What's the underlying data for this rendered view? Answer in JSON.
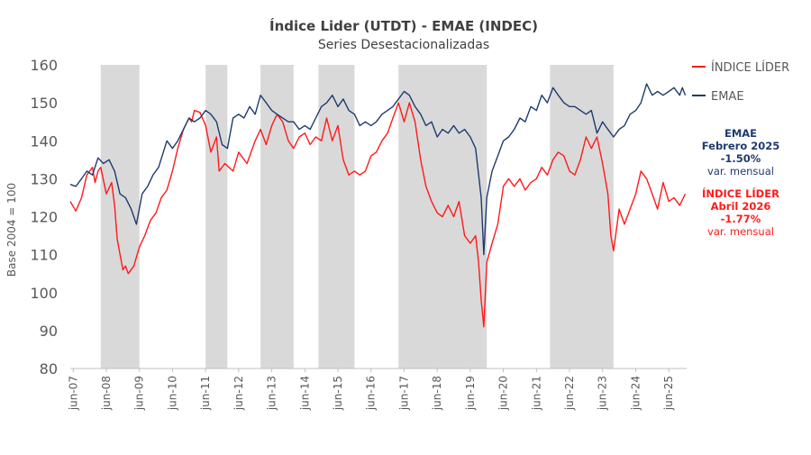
{
  "chart_data": {
    "type": "line",
    "title": "Índice Lider (UTDT)  - EMAE (INDEC)",
    "subtitle": "Series Desestacionalizadas",
    "ylabel": "Base 2004 = 100",
    "ylim": [
      80,
      160
    ],
    "yticks": [
      80,
      90,
      100,
      110,
      120,
      130,
      140,
      150,
      160
    ],
    "xlim": [
      2007.33,
      2025.96
    ],
    "xticks": [
      {
        "label": "jun-07",
        "x": 2007.42
      },
      {
        "label": "jun-08",
        "x": 2008.42
      },
      {
        "label": "jun-09",
        "x": 2009.42
      },
      {
        "label": "jun-10",
        "x": 2010.42
      },
      {
        "label": "jun-11",
        "x": 2011.42
      },
      {
        "label": "jun-12",
        "x": 2012.42
      },
      {
        "label": "jun-13",
        "x": 2013.42
      },
      {
        "label": "jun-14",
        "x": 2014.42
      },
      {
        "label": "jun-15",
        "x": 2015.42
      },
      {
        "label": "jun-16",
        "x": 2016.42
      },
      {
        "label": "jun-17",
        "x": 2017.42
      },
      {
        "label": "jun-18",
        "x": 2018.42
      },
      {
        "label": "jun-19",
        "x": 2019.42
      },
      {
        "label": "jun-20",
        "x": 2020.42
      },
      {
        "label": "jun-21",
        "x": 2021.42
      },
      {
        "label": "jun-22",
        "x": 2022.42
      },
      {
        "label": "jun-23",
        "x": 2023.42
      },
      {
        "label": "jun-24",
        "x": 2024.42
      },
      {
        "label": "jun-25",
        "x": 2025.42
      }
    ],
    "recessions": [
      [
        2008.25,
        2009.42
      ],
      [
        2011.42,
        2012.08
      ],
      [
        2013.08,
        2014.08
      ],
      [
        2014.83,
        2015.92
      ],
      [
        2017.25,
        2019.92
      ],
      [
        2021.83,
        2023.75
      ]
    ],
    "series": [
      {
        "name": "ÍNDICE LÍDER",
        "color": "#ff1a1a",
        "points": [
          [
            2007.33,
            124
          ],
          [
            2007.5,
            121.5
          ],
          [
            2007.67,
            125
          ],
          [
            2007.83,
            131
          ],
          [
            2008.0,
            133
          ],
          [
            2008.08,
            129
          ],
          [
            2008.17,
            132
          ],
          [
            2008.25,
            133
          ],
          [
            2008.42,
            126
          ],
          [
            2008.58,
            129
          ],
          [
            2008.67,
            123
          ],
          [
            2008.75,
            114
          ],
          [
            2008.92,
            106
          ],
          [
            2009.0,
            107
          ],
          [
            2009.08,
            105
          ],
          [
            2009.25,
            107
          ],
          [
            2009.42,
            112
          ],
          [
            2009.58,
            115
          ],
          [
            2009.75,
            119
          ],
          [
            2009.92,
            121
          ],
          [
            2010.08,
            125
          ],
          [
            2010.25,
            127
          ],
          [
            2010.42,
            132
          ],
          [
            2010.58,
            138
          ],
          [
            2010.75,
            143
          ],
          [
            2010.92,
            146
          ],
          [
            2011.0,
            145
          ],
          [
            2011.08,
            148
          ],
          [
            2011.25,
            147.5
          ],
          [
            2011.42,
            144
          ],
          [
            2011.58,
            137
          ],
          [
            2011.75,
            141
          ],
          [
            2011.83,
            132
          ],
          [
            2012.0,
            134
          ],
          [
            2012.25,
            132
          ],
          [
            2012.42,
            137
          ],
          [
            2012.67,
            134
          ],
          [
            2012.92,
            140
          ],
          [
            2013.08,
            143
          ],
          [
            2013.25,
            139
          ],
          [
            2013.42,
            144
          ],
          [
            2013.58,
            147
          ],
          [
            2013.75,
            145
          ],
          [
            2013.92,
            140
          ],
          [
            2014.08,
            138
          ],
          [
            2014.25,
            141
          ],
          [
            2014.42,
            142
          ],
          [
            2014.58,
            139
          ],
          [
            2014.75,
            141
          ],
          [
            2014.92,
            140
          ],
          [
            2015.08,
            146
          ],
          [
            2015.25,
            140
          ],
          [
            2015.42,
            144
          ],
          [
            2015.58,
            135
          ],
          [
            2015.75,
            131
          ],
          [
            2015.92,
            132
          ],
          [
            2016.08,
            131
          ],
          [
            2016.25,
            132
          ],
          [
            2016.42,
            136
          ],
          [
            2016.58,
            137
          ],
          [
            2016.75,
            140
          ],
          [
            2016.92,
            142
          ],
          [
            2017.08,
            146
          ],
          [
            2017.25,
            150
          ],
          [
            2017.42,
            145
          ],
          [
            2017.58,
            150
          ],
          [
            2017.75,
            145
          ],
          [
            2017.92,
            135
          ],
          [
            2018.08,
            128
          ],
          [
            2018.25,
            124
          ],
          [
            2018.42,
            121
          ],
          [
            2018.58,
            120
          ],
          [
            2018.75,
            123
          ],
          [
            2018.92,
            120
          ],
          [
            2019.08,
            124
          ],
          [
            2019.25,
            115
          ],
          [
            2019.42,
            113
          ],
          [
            2019.58,
            115
          ],
          [
            2019.67,
            108
          ],
          [
            2019.75,
            98
          ],
          [
            2019.83,
            91
          ],
          [
            2019.92,
            108
          ],
          [
            2020.08,
            113
          ],
          [
            2020.25,
            118
          ],
          [
            2020.42,
            128
          ],
          [
            2020.58,
            130
          ],
          [
            2020.75,
            128
          ],
          [
            2020.92,
            130
          ],
          [
            2021.08,
            127
          ],
          [
            2021.25,
            129
          ],
          [
            2021.42,
            130
          ],
          [
            2021.58,
            133
          ],
          [
            2021.75,
            131
          ],
          [
            2021.92,
            135
          ],
          [
            2022.08,
            137
          ],
          [
            2022.25,
            136
          ],
          [
            2022.42,
            132
          ],
          [
            2022.58,
            131
          ],
          [
            2022.75,
            135
          ],
          [
            2022.92,
            141
          ],
          [
            2023.08,
            138
          ],
          [
            2023.25,
            141
          ],
          [
            2023.42,
            134
          ],
          [
            2023.58,
            126
          ],
          [
            2023.67,
            115
          ],
          [
            2023.75,
            111
          ],
          [
            2023.92,
            122
          ],
          [
            2024.08,
            118
          ],
          [
            2024.25,
            122
          ],
          [
            2024.42,
            126
          ],
          [
            2024.58,
            132
          ],
          [
            2024.75,
            130
          ],
          [
            2024.92,
            126
          ],
          [
            2025.08,
            122
          ],
          [
            2025.25,
            129
          ],
          [
            2025.42,
            124
          ],
          [
            2025.58,
            125
          ],
          [
            2025.75,
            123
          ],
          [
            2025.92,
            126
          ]
        ]
      },
      {
        "name": "EMAE",
        "color": "#1f3b6e",
        "points": [
          [
            2007.33,
            128.5
          ],
          [
            2007.5,
            128
          ],
          [
            2007.67,
            130
          ],
          [
            2007.83,
            132
          ],
          [
            2008.0,
            131
          ],
          [
            2008.17,
            135.5
          ],
          [
            2008.33,
            134
          ],
          [
            2008.5,
            135
          ],
          [
            2008.67,
            132
          ],
          [
            2008.83,
            126
          ],
          [
            2009.0,
            125
          ],
          [
            2009.17,
            122
          ],
          [
            2009.33,
            118
          ],
          [
            2009.5,
            126
          ],
          [
            2009.67,
            128
          ],
          [
            2009.83,
            131
          ],
          [
            2010.0,
            133
          ],
          [
            2010.25,
            140
          ],
          [
            2010.42,
            138
          ],
          [
            2010.58,
            140
          ],
          [
            2010.75,
            143
          ],
          [
            2010.92,
            146
          ],
          [
            2011.08,
            145
          ],
          [
            2011.25,
            146
          ],
          [
            2011.42,
            148
          ],
          [
            2011.58,
            147
          ],
          [
            2011.75,
            145
          ],
          [
            2011.92,
            139
          ],
          [
            2012.08,
            138
          ],
          [
            2012.25,
            146
          ],
          [
            2012.42,
            147
          ],
          [
            2012.58,
            146
          ],
          [
            2012.75,
            149
          ],
          [
            2012.92,
            147
          ],
          [
            2013.08,
            152
          ],
          [
            2013.25,
            150
          ],
          [
            2013.42,
            148
          ],
          [
            2013.58,
            147
          ],
          [
            2013.75,
            146
          ],
          [
            2013.92,
            145
          ],
          [
            2014.08,
            145
          ],
          [
            2014.25,
            143
          ],
          [
            2014.42,
            144
          ],
          [
            2014.58,
            143
          ],
          [
            2014.75,
            146
          ],
          [
            2014.92,
            149
          ],
          [
            2015.08,
            150
          ],
          [
            2015.25,
            152
          ],
          [
            2015.42,
            149
          ],
          [
            2015.58,
            151
          ],
          [
            2015.75,
            148
          ],
          [
            2015.92,
            147
          ],
          [
            2016.08,
            144
          ],
          [
            2016.25,
            145
          ],
          [
            2016.42,
            144
          ],
          [
            2016.58,
            145
          ],
          [
            2016.75,
            147
          ],
          [
            2016.92,
            148
          ],
          [
            2017.08,
            149
          ],
          [
            2017.25,
            151
          ],
          [
            2017.42,
            153
          ],
          [
            2017.58,
            152
          ],
          [
            2017.75,
            149
          ],
          [
            2017.92,
            147
          ],
          [
            2018.08,
            144
          ],
          [
            2018.25,
            145
          ],
          [
            2018.42,
            141
          ],
          [
            2018.58,
            143
          ],
          [
            2018.75,
            142
          ],
          [
            2018.92,
            144
          ],
          [
            2019.08,
            142
          ],
          [
            2019.25,
            143
          ],
          [
            2019.42,
            141
          ],
          [
            2019.58,
            138
          ],
          [
            2019.75,
            125
          ],
          [
            2019.83,
            110
          ],
          [
            2019.92,
            125
          ],
          [
            2020.08,
            132
          ],
          [
            2020.25,
            136
          ],
          [
            2020.42,
            140
          ],
          [
            2020.58,
            141
          ],
          [
            2020.75,
            143
          ],
          [
            2020.92,
            146
          ],
          [
            2021.08,
            145
          ],
          [
            2021.25,
            149
          ],
          [
            2021.42,
            148
          ],
          [
            2021.58,
            152
          ],
          [
            2021.75,
            150
          ],
          [
            2021.92,
            154
          ],
          [
            2022.08,
            152
          ],
          [
            2022.25,
            150
          ],
          [
            2022.42,
            149
          ],
          [
            2022.58,
            149
          ],
          [
            2022.75,
            148
          ],
          [
            2022.92,
            147
          ],
          [
            2023.08,
            148
          ],
          [
            2023.25,
            142
          ],
          [
            2023.42,
            145
          ],
          [
            2023.58,
            143
          ],
          [
            2023.75,
            141
          ],
          [
            2023.92,
            143
          ],
          [
            2024.08,
            144
          ],
          [
            2024.25,
            147
          ],
          [
            2024.42,
            148
          ],
          [
            2024.58,
            150
          ],
          [
            2024.75,
            155
          ],
          [
            2024.92,
            152
          ],
          [
            2025.08,
            153
          ],
          [
            2025.25,
            152
          ],
          [
            2025.42,
            153
          ],
          [
            2025.58,
            154
          ],
          [
            2025.75,
            152
          ],
          [
            2025.83,
            154
          ],
          [
            2025.92,
            152
          ]
        ]
      }
    ],
    "legend": [
      {
        "label": "ÍNDICE LÍDER",
        "color": "#ff1a1a"
      },
      {
        "label": "EMAE",
        "color": "#1f3b6e"
      }
    ],
    "annotations": {
      "emae": {
        "color": "#1f3b6e",
        "line1": "EMAE",
        "line2": "Febrero 2025",
        "line3": "-1.50%",
        "line4": "var. mensual"
      },
      "lider": {
        "color": "#ff1a1a",
        "line1": "ÍNDICE LÍDER",
        "line2": "Abril 2026",
        "line3": "-1.77%",
        "line4": "var. mensual"
      }
    },
    "recession_color": "#d9d9d9",
    "grid": false
  }
}
